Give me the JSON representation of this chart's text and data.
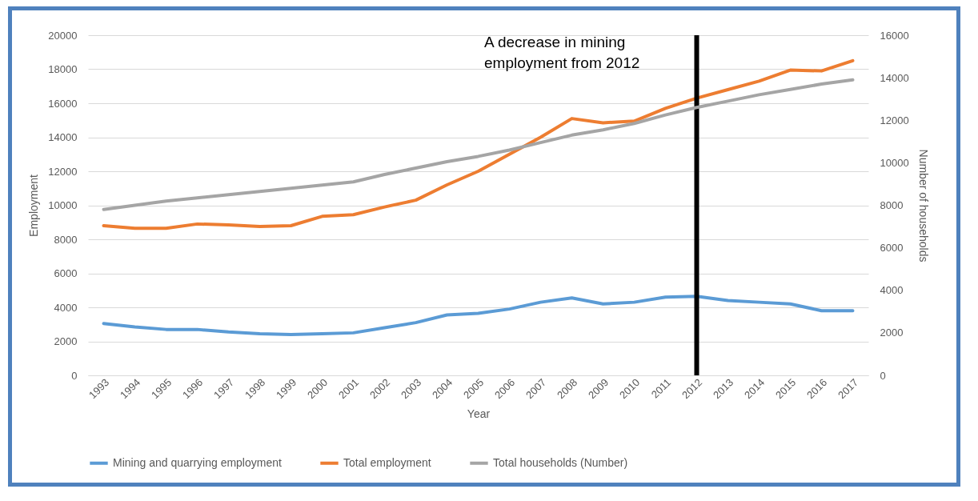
{
  "chart_data": {
    "type": "line",
    "xlabel": "Year",
    "ylabel": "Employment",
    "y2label": "Number of households",
    "categories": [
      "1993",
      "1994",
      "1995",
      "1996",
      "1997",
      "1998",
      "1999",
      "2000",
      "2001",
      "2002",
      "2003",
      "2004",
      "2005",
      "2006",
      "2007",
      "2008",
      "2009",
      "2010",
      "2011",
      "2012",
      "2013",
      "2014",
      "2015",
      "2016",
      "2017"
    ],
    "series": [
      {
        "name": "Mining and quarrying employment",
        "color": "#5b9bd5",
        "values": [
          3050,
          2850,
          2700,
          2700,
          2550,
          2450,
          2400,
          2450,
          2500,
          2800,
          3100,
          3550,
          3650,
          3900,
          4300,
          4550,
          4200,
          4300,
          4600,
          4650,
          4400,
          4300,
          4200,
          3800,
          3800
        ]
      },
      {
        "name": "Total employment",
        "color": "#ed7d31",
        "values": [
          8800,
          8650,
          8650,
          8900,
          8850,
          8750,
          8800,
          9350,
          9450,
          9900,
          10300,
          11200,
          12000,
          13000,
          14000,
          15100,
          14850,
          14950,
          15700,
          16300,
          16800,
          17300,
          17950,
          17900,
          18500
        ]
      },
      {
        "name": "Total households (Number)",
        "color": "#a5a5a5",
        "axis": "y2",
        "values": [
          7800,
          8000,
          8200,
          8350,
          8500,
          8650,
          8800,
          8950,
          9100,
          9450,
          9750,
          10050,
          10300,
          10600,
          10950,
          11300,
          11550,
          11850,
          12250,
          12600,
          12900,
          13200,
          13450,
          13700,
          13900
        ]
      }
    ],
    "ylim": [
      0,
      20000
    ],
    "yticks": [
      0,
      2000,
      4000,
      6000,
      8000,
      10000,
      12000,
      14000,
      16000,
      18000,
      20000
    ],
    "y2lim": [
      0,
      16000
    ],
    "y2ticks": [
      0,
      2000,
      4000,
      6000,
      8000,
      10000,
      12000,
      14000,
      16000
    ],
    "grid": "y",
    "legend": "bottom",
    "ref_lines": [
      {
        "axis": "x",
        "value": "2012",
        "color": "#000000"
      }
    ],
    "annotations": [
      "A decrease in mining employment from 2012"
    ]
  }
}
